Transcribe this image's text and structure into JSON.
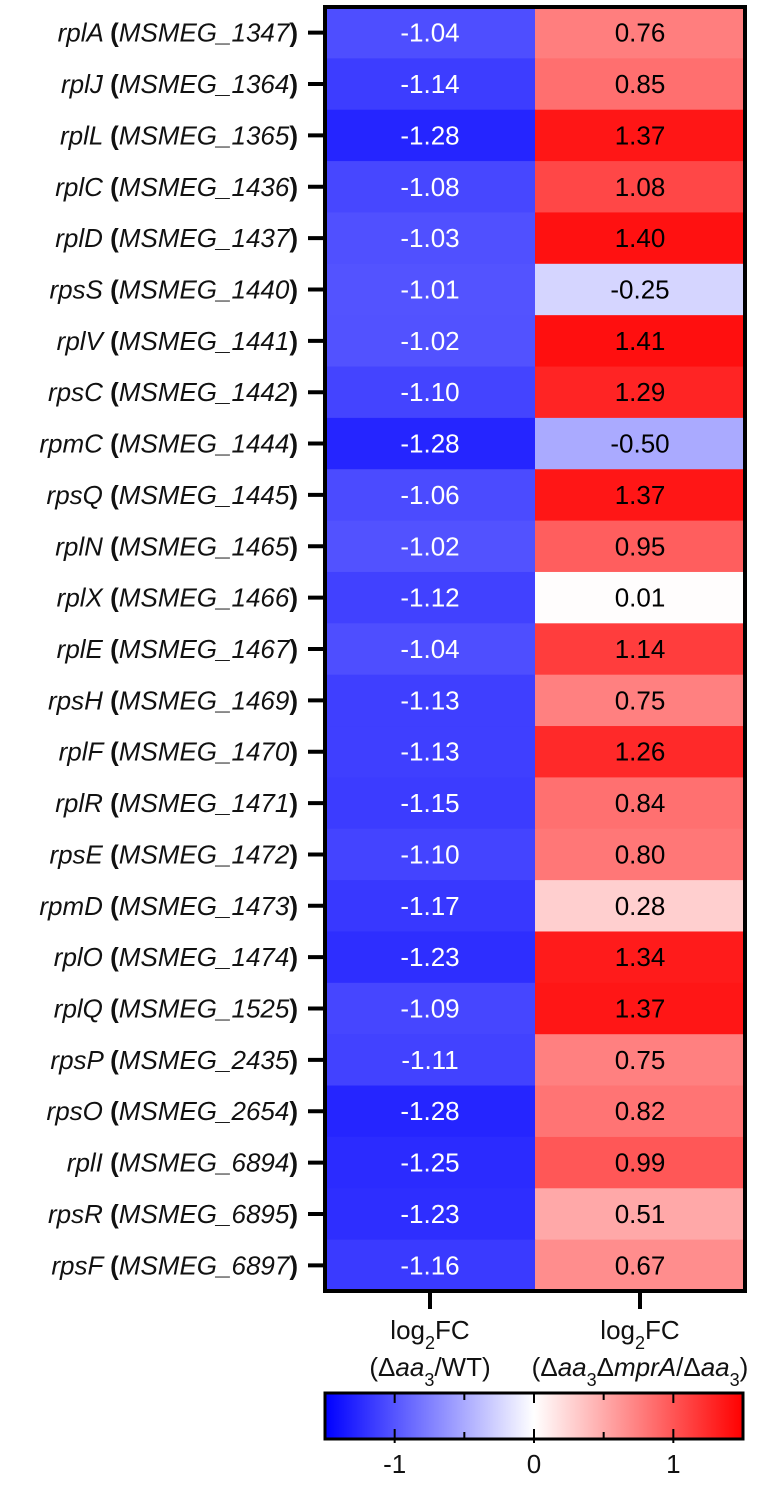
{
  "chart_data": {
    "type": "heatmap",
    "rows": [
      {
        "gene": "rplA",
        "locus": "MSMEG_1347",
        "values": [
          -1.04,
          0.76
        ],
        "labels": [
          "-1.04",
          "0.76"
        ]
      },
      {
        "gene": "rplJ",
        "locus": "MSMEG_1364",
        "values": [
          -1.14,
          0.85
        ],
        "labels": [
          "-1.14",
          "0.85"
        ]
      },
      {
        "gene": "rplL",
        "locus": "MSMEG_1365",
        "values": [
          -1.28,
          1.37
        ],
        "labels": [
          "-1.28",
          "1.37"
        ]
      },
      {
        "gene": "rplC",
        "locus": "MSMEG_1436",
        "values": [
          -1.08,
          1.08
        ],
        "labels": [
          "-1.08",
          "1.08"
        ]
      },
      {
        "gene": "rplD",
        "locus": "MSMEG_1437",
        "values": [
          -1.03,
          1.4
        ],
        "labels": [
          "-1.03",
          "1.40"
        ]
      },
      {
        "gene": "rpsS",
        "locus": "MSMEG_1440",
        "values": [
          -1.01,
          -0.25
        ],
        "labels": [
          "-1.01",
          "-0.25"
        ]
      },
      {
        "gene": "rplV",
        "locus": "MSMEG_1441",
        "values": [
          -1.02,
          1.41
        ],
        "labels": [
          "-1.02",
          "1.41"
        ]
      },
      {
        "gene": "rpsC",
        "locus": "MSMEG_1442",
        "values": [
          -1.1,
          1.29
        ],
        "labels": [
          "-1.10",
          "1.29"
        ]
      },
      {
        "gene": "rpmC",
        "locus": "MSMEG_1444",
        "values": [
          -1.28,
          -0.5
        ],
        "labels": [
          "-1.28",
          "-0.50"
        ]
      },
      {
        "gene": "rpsQ",
        "locus": "MSMEG_1445",
        "values": [
          -1.06,
          1.37
        ],
        "labels": [
          "-1.06",
          "1.37"
        ]
      },
      {
        "gene": "rplN",
        "locus": "MSMEG_1465",
        "values": [
          -1.02,
          0.95
        ],
        "labels": [
          "-1.02",
          "0.95"
        ]
      },
      {
        "gene": "rplX",
        "locus": "MSMEG_1466",
        "values": [
          -1.12,
          0.01
        ],
        "labels": [
          "-1.12",
          "0.01"
        ]
      },
      {
        "gene": "rplE",
        "locus": "MSMEG_1467",
        "values": [
          -1.04,
          1.14
        ],
        "labels": [
          "-1.04",
          "1.14"
        ]
      },
      {
        "gene": "rpsH",
        "locus": "MSMEG_1469",
        "values": [
          -1.13,
          0.75
        ],
        "labels": [
          "-1.13",
          "0.75"
        ]
      },
      {
        "gene": "rplF",
        "locus": "MSMEG_1470",
        "values": [
          -1.13,
          1.26
        ],
        "labels": [
          "-1.13",
          "1.26"
        ]
      },
      {
        "gene": "rplR",
        "locus": "MSMEG_1471",
        "values": [
          -1.15,
          0.84
        ],
        "labels": [
          "-1.15",
          "0.84"
        ]
      },
      {
        "gene": "rpsE",
        "locus": "MSMEG_1472",
        "values": [
          -1.1,
          0.8
        ],
        "labels": [
          "-1.10",
          "0.80"
        ]
      },
      {
        "gene": "rpmD",
        "locus": "MSMEG_1473",
        "values": [
          -1.17,
          0.28
        ],
        "labels": [
          "-1.17",
          "0.28"
        ]
      },
      {
        "gene": "rplO",
        "locus": "MSMEG_1474",
        "values": [
          -1.23,
          1.34
        ],
        "labels": [
          "-1.23",
          "1.34"
        ]
      },
      {
        "gene": "rplQ",
        "locus": "MSMEG_1525",
        "values": [
          -1.09,
          1.37
        ],
        "labels": [
          "-1.09",
          "1.37"
        ]
      },
      {
        "gene": "rpsP",
        "locus": "MSMEG_2435",
        "values": [
          -1.11,
          0.75
        ],
        "labels": [
          "-1.11",
          "0.75"
        ]
      },
      {
        "gene": "rpsO",
        "locus": "MSMEG_2654",
        "values": [
          -1.28,
          0.82
        ],
        "labels": [
          "-1.28",
          "0.82"
        ]
      },
      {
        "gene": "rplI",
        "locus": "MSMEG_6894",
        "values": [
          -1.25,
          0.99
        ],
        "labels": [
          "-1.25",
          "0.99"
        ]
      },
      {
        "gene": "rpsR",
        "locus": "MSMEG_6895",
        "values": [
          -1.23,
          0.51
        ],
        "labels": [
          "-1.23",
          "0.51"
        ]
      },
      {
        "gene": "rpsF",
        "locus": "MSMEG_6897",
        "values": [
          -1.16,
          0.67
        ],
        "labels": [
          "-1.16",
          "0.67"
        ]
      }
    ],
    "columns": [
      {
        "parts": [
          {
            "line": 1,
            "text": "log",
            "style": "normal"
          },
          {
            "line": 1,
            "text": "2",
            "style": "sub"
          },
          {
            "line": 1,
            "text": "FC",
            "style": "normal"
          },
          {
            "line": 2,
            "text": "(Δ",
            "style": "normal"
          },
          {
            "line": 2,
            "text": "aa",
            "style": "italic"
          },
          {
            "line": 2,
            "text": "3",
            "style": "sub"
          },
          {
            "line": 2,
            "text": "/WT)",
            "style": "normal"
          }
        ]
      },
      {
        "parts": [
          {
            "line": 1,
            "text": "log",
            "style": "normal"
          },
          {
            "line": 1,
            "text": "2",
            "style": "sub"
          },
          {
            "line": 1,
            "text": "FC",
            "style": "normal"
          },
          {
            "line": 2,
            "text": "(Δ",
            "style": "normal"
          },
          {
            "line": 2,
            "text": "aa",
            "style": "italic"
          },
          {
            "line": 2,
            "text": "3",
            "style": "sub"
          },
          {
            "line": 2,
            "text": "Δ",
            "style": "normal"
          },
          {
            "line": 2,
            "text": "mprA",
            "style": "italic"
          },
          {
            "line": 2,
            "text": "/Δ",
            "style": "normal"
          },
          {
            "line": 2,
            "text": "aa",
            "style": "italic"
          },
          {
            "line": 2,
            "text": "3",
            "style": "sub"
          },
          {
            "line": 2,
            "text": ")",
            "style": "normal"
          }
        ]
      }
    ],
    "colorbar": {
      "range": [
        -1.5,
        1.5
      ],
      "ticks": [
        -1,
        0,
        1
      ],
      "tick_labels": [
        "-1",
        "0",
        "1"
      ],
      "minor_ticks": [
        -1.5,
        -0.5,
        0.5,
        1.5
      ],
      "colors": {
        "low": "#0000ff",
        "mid": "#ffffff",
        "high": "#ff0000"
      }
    },
    "value_text_colors": {
      "column1": "#ffffff",
      "column2": "#000000"
    }
  }
}
